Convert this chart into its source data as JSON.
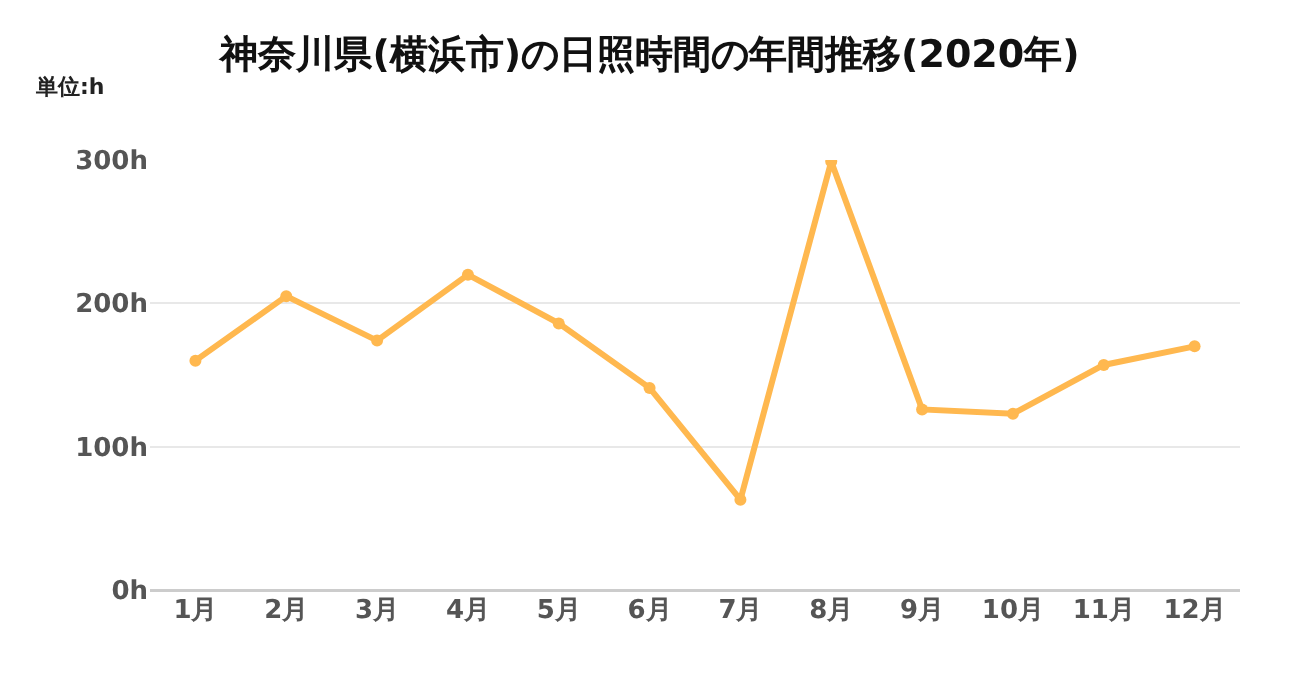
{
  "chart_data": {
    "type": "line",
    "title": "神奈川県(横浜市)の日照時間の年間推移(2020年)",
    "annotations": [
      "単位:h"
    ],
    "categories": [
      "1月",
      "2月",
      "3月",
      "4月",
      "5月",
      "6月",
      "7月",
      "8月",
      "9月",
      "10月",
      "11月",
      "12月"
    ],
    "series": [
      {
        "color": "#ffb84f",
        "values": [
          160,
          205,
          174,
          220,
          186,
          141,
          63,
          299,
          126,
          123,
          157,
          170
        ]
      }
    ],
    "ylim": [
      0,
      300
    ],
    "yticks": [
      {
        "value": 0,
        "label": "0h"
      },
      {
        "value": 100,
        "label": "100h"
      },
      {
        "value": 200,
        "label": "200h"
      },
      {
        "value": 300,
        "label": "300h"
      }
    ],
    "grid": "y",
    "legend": false,
    "marker": "circle",
    "line_style": "solid"
  }
}
